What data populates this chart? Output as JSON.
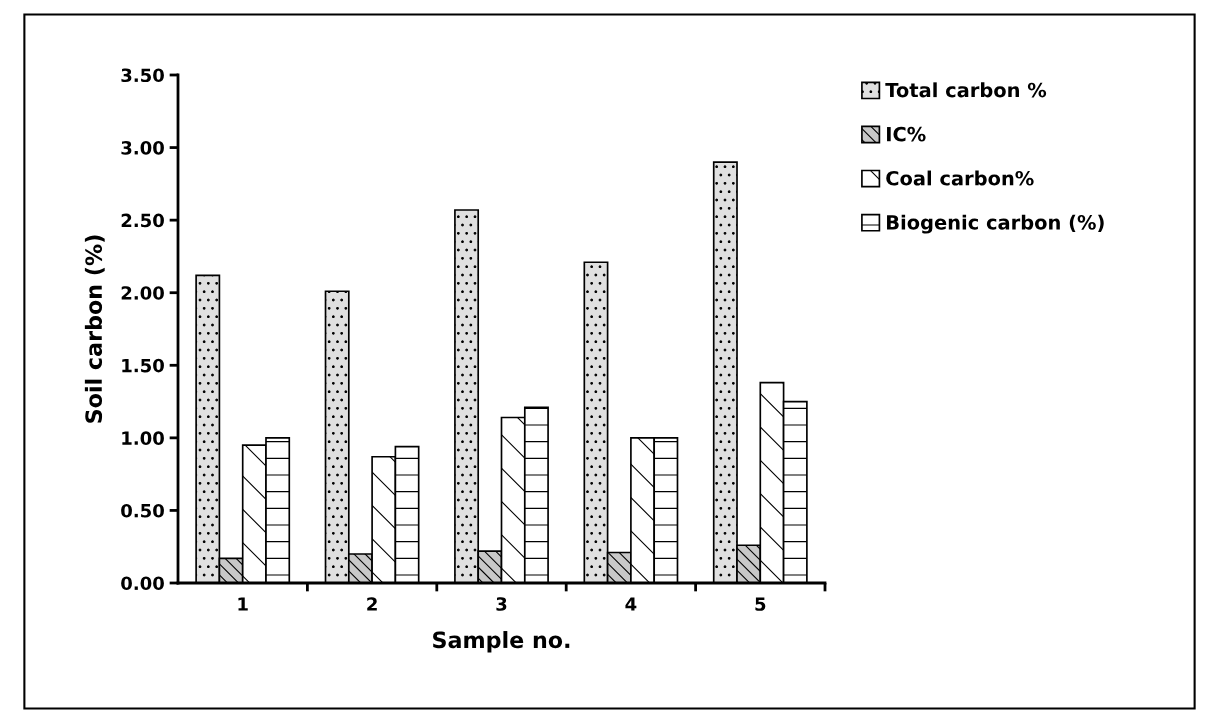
{
  "chart_data": {
    "type": "bar",
    "xlabel": "Sample no.",
    "ylabel": "Soil carbon (%)",
    "categories": [
      "1",
      "2",
      "3",
      "4",
      "5"
    ],
    "series": [
      {
        "name": "Total carbon %",
        "color": "#e0e0e0",
        "values": [
          2.12,
          2.01,
          2.57,
          2.21,
          2.9
        ]
      },
      {
        "name": "IC%",
        "color": "#c8c8c8",
        "values": [
          0.17,
          0.2,
          0.22,
          0.21,
          0.26
        ]
      },
      {
        "name": "Coal carbon%",
        "color": "#ffffff",
        "values": [
          0.95,
          0.87,
          1.14,
          1.0,
          1.38
        ]
      },
      {
        "name": "Biogenic carbon (%)",
        "color": "#ffffff",
        "values": [
          1.0,
          0.94,
          1.21,
          1.0,
          1.25
        ]
      }
    ],
    "ylim": [
      0,
      3.5
    ],
    "yticks": [
      {
        "value": 0,
        "label": "0.00"
      },
      {
        "value": 0.5,
        "label": "0.50"
      },
      {
        "value": 1,
        "label": "1.00"
      },
      {
        "value": 1.5,
        "label": "1.50"
      },
      {
        "value": 2,
        "label": "2.00"
      },
      {
        "value": 2.5,
        "label": "2.50"
      },
      {
        "value": 3,
        "label": "3.00"
      },
      {
        "value": 3.5,
        "label": "3.50"
      }
    ],
    "grid": false,
    "legend": "top right"
  }
}
